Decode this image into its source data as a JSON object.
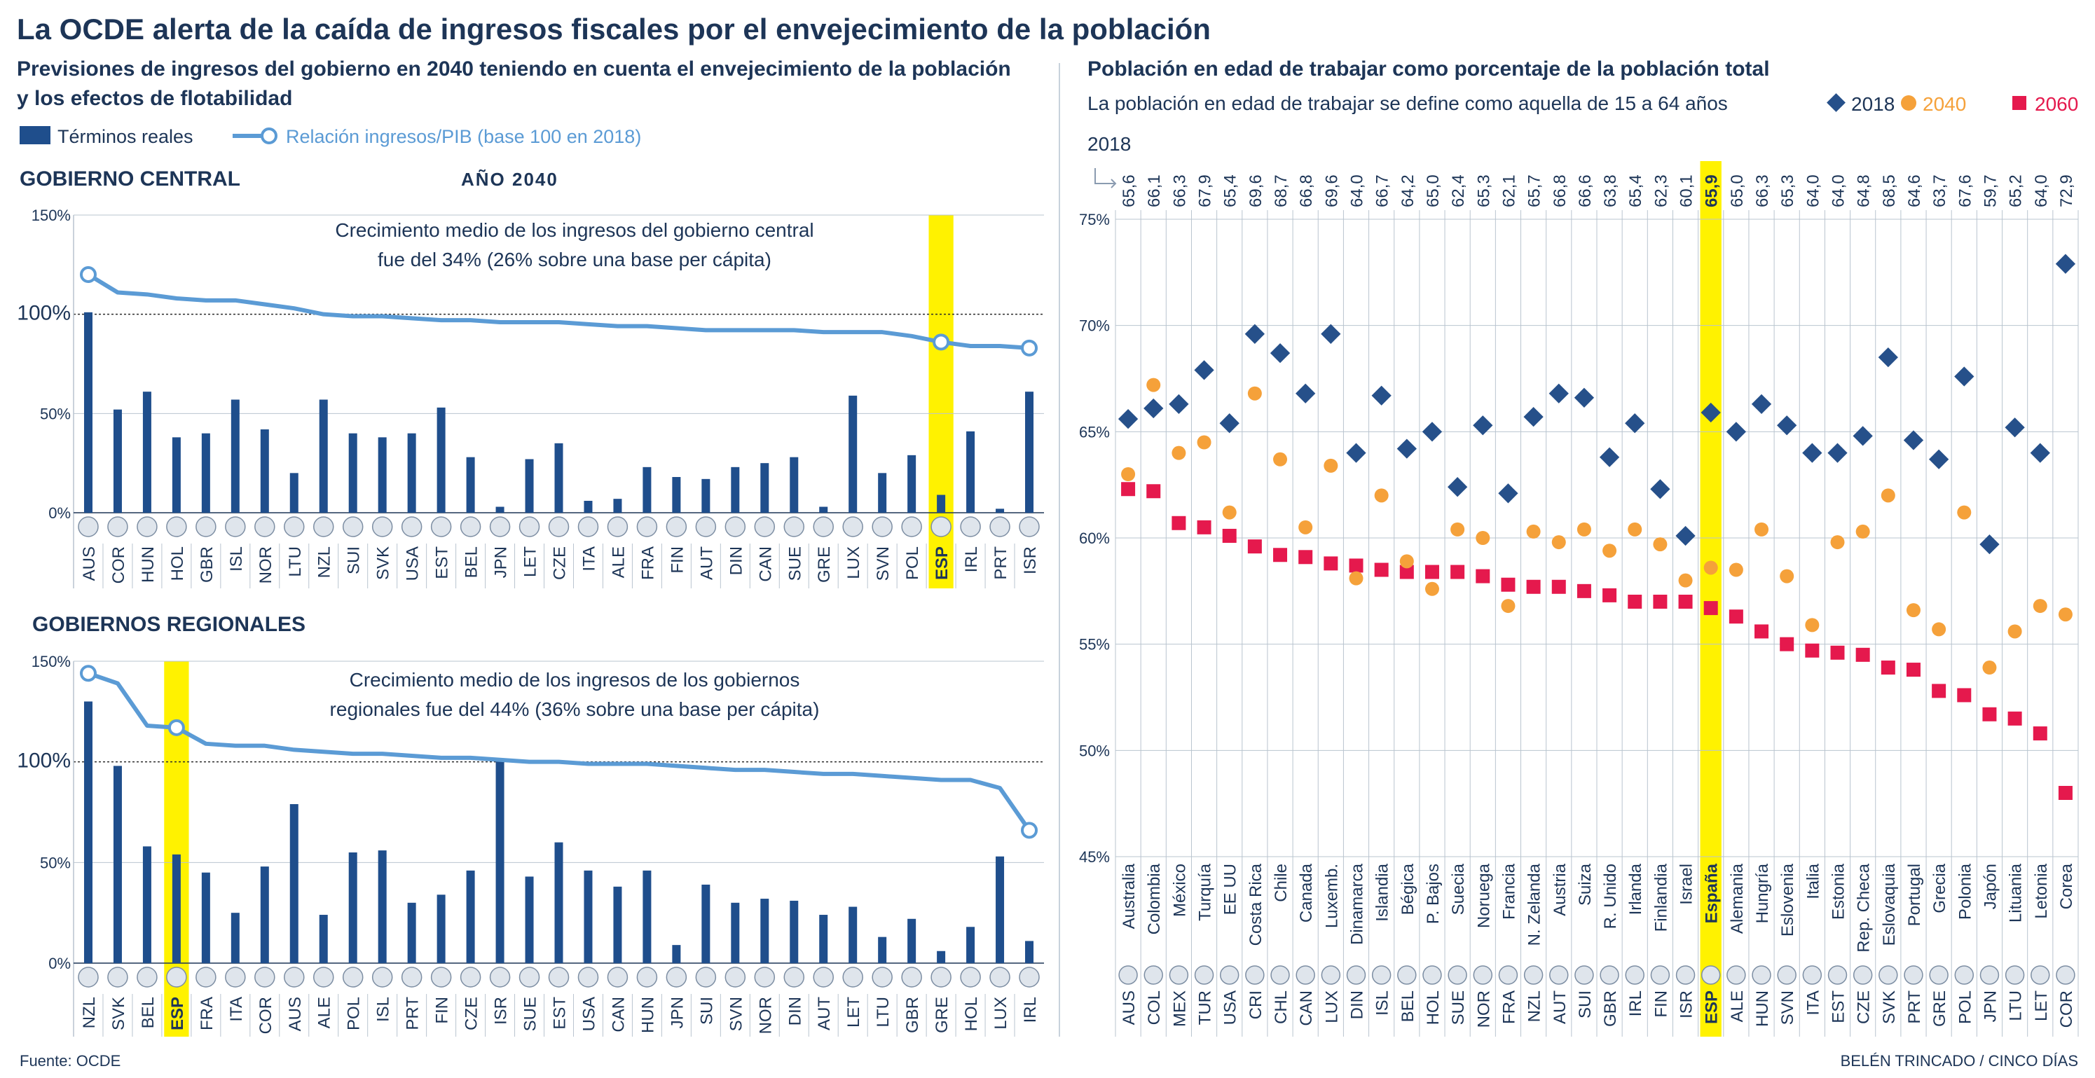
{
  "header": {
    "title": "La OCDE alerta de la caída de ingresos fiscales por el envejecimiento de la población",
    "left_subtitle_line1": "Previsiones de ingresos del gobierno en 2040 teniendo en cuenta el envejecimiento de la población",
    "left_subtitle_line2": "y los efectos de flotabilidad",
    "right_subtitle": "Población en edad de trabajar como porcentaje de la población total",
    "right_note": "La población en edad de trabajar se define como aquella de 15 a 64 años"
  },
  "left_legend": {
    "bars": "Términos reales",
    "line": "Relación ingresos/PIB (base 100 en 2018)"
  },
  "footer": {
    "source": "Fuente: OCDE",
    "credit": "BELÉN TRINCADO / CINCO DÍAS"
  },
  "colors": {
    "navy": "#1f4e8c",
    "line": "#5b9bd5",
    "highlight": "#fff200",
    "diamond": "#26508a",
    "orange": "#f5a13a",
    "red": "#e5194d",
    "title": "#1d3557"
  },
  "chart_data": [
    {
      "id": "central",
      "type": "bar",
      "title": "GOBIERNO CENTRAL",
      "subtitle": "AÑO 2040",
      "annotation_line1": "Crecimiento medio de los ingresos del gobierno central",
      "annotation_line2": "fue del 34% (26% sobre una base per cápita)",
      "ylim": [
        0,
        150
      ],
      "yticks": [
        "0%",
        "50%",
        "100%",
        "150%"
      ],
      "highlight": "ESP",
      "categories": [
        "AUS",
        "COR",
        "HUN",
        "HOL",
        "GBR",
        "ISL",
        "NOR",
        "LTU",
        "NZL",
        "SUI",
        "SVK",
        "USA",
        "EST",
        "BEL",
        "JPN",
        "LET",
        "CZE",
        "ITA",
        "ALE",
        "FRA",
        "FIN",
        "AUT",
        "DIN",
        "CAN",
        "SUE",
        "GRE",
        "LUX",
        "SVN",
        "POL",
        "ESP",
        "IRL",
        "PRT",
        "ISR"
      ],
      "series": [
        {
          "name": "Términos reales",
          "values": [
            101,
            52,
            61,
            38,
            40,
            57,
            42,
            20,
            57,
            40,
            38,
            40,
            53,
            28,
            3,
            27,
            35,
            6,
            7,
            23,
            18,
            17,
            23,
            25,
            28,
            3,
            59,
            20,
            29,
            9,
            41,
            2,
            61
          ]
        },
        {
          "name": "Relación ingresos/PIB (base 100 en 2018)",
          "values": [
            120,
            111,
            110,
            108,
            107,
            107,
            105,
            103,
            100,
            99,
            99,
            98,
            97,
            97,
            96,
            96,
            96,
            95,
            94,
            94,
            93,
            92,
            92,
            92,
            92,
            91,
            91,
            91,
            89,
            86,
            84,
            84,
            83
          ]
        }
      ]
    },
    {
      "id": "regional",
      "type": "bar",
      "title": "GOBIERNOS REGIONALES",
      "annotation_line1": "Crecimiento medio de los ingresos de los gobiernos",
      "annotation_line2": "regionales fue del 44% (36% sobre una base per cápita)",
      "ylim": [
        0,
        150
      ],
      "yticks": [
        "0%",
        "50%",
        "100%",
        "150%"
      ],
      "highlight": "ESP",
      "categories": [
        "NZL",
        "SVK",
        "BEL",
        "ESP",
        "FRA",
        "ITA",
        "COR",
        "AUS",
        "ALE",
        "POL",
        "ISL",
        "PRT",
        "FIN",
        "CZE",
        "ISR",
        "SUE",
        "EST",
        "USA",
        "CAN",
        "HUN",
        "JPN",
        "SUI",
        "SVN",
        "NOR",
        "DIN",
        "AUT",
        "LET",
        "LTU",
        "GBR",
        "GRE",
        "HOL",
        "LUX",
        "IRL"
      ],
      "series": [
        {
          "name": "Términos reales",
          "values": [
            130,
            98,
            58,
            54,
            45,
            25,
            48,
            79,
            24,
            55,
            56,
            30,
            34,
            46,
            101,
            43,
            60,
            46,
            38,
            46,
            9,
            39,
            30,
            32,
            31,
            24,
            28,
            13,
            22,
            6,
            18,
            53,
            11
          ]
        },
        {
          "name": "Relación ingresos/PIB (base 100 en 2018)",
          "values": [
            144,
            139,
            118,
            117,
            109,
            108,
            108,
            106,
            105,
            104,
            104,
            103,
            102,
            102,
            101,
            100,
            100,
            99,
            99,
            99,
            98,
            97,
            96,
            96,
            95,
            94,
            94,
            93,
            92,
            91,
            91,
            87,
            66
          ]
        }
      ]
    },
    {
      "id": "workforce",
      "type": "scatter",
      "ylim": [
        45,
        75
      ],
      "yticks": [
        "45%",
        "50%",
        "55%",
        "60%",
        "65%",
        "70%",
        "75%"
      ],
      "top_axis_label": "2018",
      "highlight": "ESP",
      "codes": [
        "AUS",
        "COL",
        "MEX",
        "TUR",
        "USA",
        "CRI",
        "CHL",
        "CAN",
        "LUX",
        "DIN",
        "ISL",
        "BEL",
        "HOL",
        "SUE",
        "NOR",
        "FRA",
        "NZL",
        "AUT",
        "SUI",
        "GBR",
        "IRL",
        "FIN",
        "ISR",
        "ESP",
        "ALE",
        "HUN",
        "SVN",
        "ITA",
        "EST",
        "CZE",
        "SVK",
        "PRT",
        "GRE",
        "POL",
        "JPN",
        "LTU",
        "LET",
        "COR"
      ],
      "names": [
        "Australia",
        "Colombia",
        "México",
        "Turquía",
        "EE UU",
        "Costa Rica",
        "Chile",
        "Canada",
        "Luxemb.",
        "Dinamarca",
        "Islandia",
        "Bégica",
        "P. Bajos",
        "Suecia",
        "Noruega",
        "Francia",
        "N. Zelanda",
        "Austria",
        "Suiza",
        "R. Unido",
        "Irlanda",
        "Finlandia",
        "Israel",
        "España",
        "Alemania",
        "Hungría",
        "Eslovenia",
        "Italia",
        "Estonia",
        "Rep. Checa",
        "Eslovaquia",
        "Portugal",
        "Grecia",
        "Polonia",
        "Japón",
        "Lituania",
        "Letonia",
        "Corea"
      ],
      "top_labels": [
        "65,6",
        "66,1",
        "66,3",
        "67,9",
        "65,4",
        "69,6",
        "68,7",
        "66,8",
        "69,6",
        "64,0",
        "66,7",
        "64,2",
        "65,0",
        "62,4",
        "65,3",
        "62,1",
        "65,7",
        "66,8",
        "66,6",
        "63,8",
        "65,4",
        "62,3",
        "60,1",
        "65,9",
        "65,0",
        "66,3",
        "65,3",
        "64,0",
        "64,0",
        "64,8",
        "68,5",
        "64,6",
        "63,7",
        "67,6",
        "59,7",
        "65,2",
        "64,0",
        "72,9"
      ],
      "legend": [
        "2018",
        "2040",
        "2060"
      ],
      "series": [
        {
          "name": "2018",
          "values": [
            65.6,
            66.1,
            66.3,
            67.9,
            65.4,
            69.6,
            68.7,
            66.8,
            69.6,
            64.0,
            66.7,
            64.2,
            65.0,
            62.4,
            65.3,
            62.1,
            65.7,
            66.8,
            66.6,
            63.8,
            65.4,
            62.3,
            60.1,
            65.9,
            65.0,
            66.3,
            65.3,
            64.0,
            64.0,
            64.8,
            68.5,
            64.6,
            63.7,
            67.6,
            59.7,
            65.2,
            64.0,
            72.9
          ]
        },
        {
          "name": "2040",
          "values": [
            63.0,
            67.2,
            64.0,
            64.5,
            61.2,
            66.8,
            63.7,
            60.5,
            63.4,
            58.1,
            62.0,
            58.9,
            57.6,
            60.4,
            60.0,
            56.8,
            60.3,
            59.8,
            60.4,
            59.4,
            60.4,
            59.7,
            58.0,
            58.6,
            58.5,
            60.4,
            58.2,
            55.9,
            59.8,
            60.3,
            62.0,
            56.6,
            55.7,
            61.2,
            53.9,
            55.6,
            56.8,
            56.4
          ]
        },
        {
          "name": "2060",
          "values": [
            62.3,
            62.2,
            60.7,
            60.5,
            60.1,
            59.6,
            59.2,
            59.1,
            58.8,
            58.7,
            58.5,
            58.4,
            58.4,
            58.4,
            58.2,
            57.8,
            57.7,
            57.7,
            57.5,
            57.3,
            57.0,
            57.0,
            57.0,
            56.7,
            56.3,
            55.6,
            55.0,
            54.7,
            54.6,
            54.5,
            53.9,
            53.8,
            52.8,
            52.6,
            51.7,
            51.5,
            50.8,
            48.0
          ]
        }
      ]
    }
  ]
}
